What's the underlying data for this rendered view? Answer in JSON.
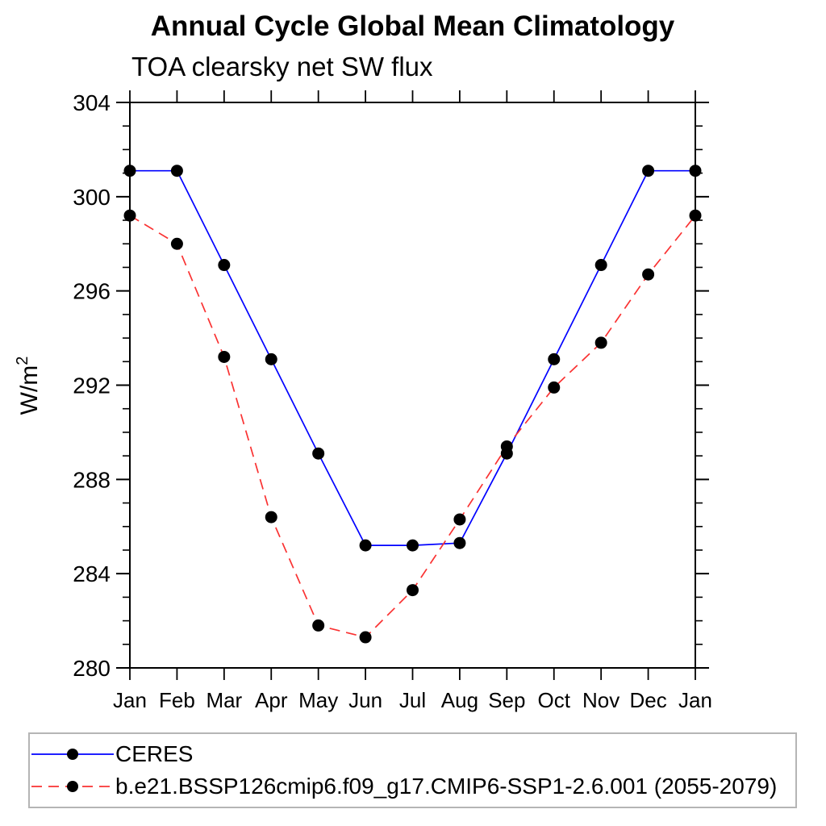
{
  "chart": {
    "title": "Annual Cycle Global Mean Climatology",
    "subtitle": "TOA clearsky net SW flux",
    "ylabel": {
      "base": "W/m",
      "exp": "2"
    }
  },
  "chart_data": {
    "type": "line",
    "categories": [
      "Jan",
      "Feb",
      "Mar",
      "Apr",
      "May",
      "Jun",
      "Jul",
      "Aug",
      "Sep",
      "Oct",
      "Nov",
      "Dec",
      "Jan"
    ],
    "series": [
      {
        "name": "CERES",
        "color": "#0000ff",
        "line_style": "solid",
        "marker": "filled-circle",
        "values": [
          301.1,
          301.1,
          297.1,
          293.1,
          289.1,
          285.2,
          285.2,
          285.3,
          289.1,
          293.1,
          297.1,
          301.1,
          301.1
        ]
      },
      {
        "name": "b.e21.BSSP126cmip6.f09_g17.CMIP6-SSP1-2.6.001 (2055-2079)",
        "color": "#fa3232",
        "line_style": "dashed",
        "marker": "filled-circle",
        "values": [
          299.2,
          298.0,
          293.2,
          286.4,
          281.8,
          281.3,
          283.3,
          286.3,
          289.4,
          291.9,
          293.8,
          296.7,
          299.2
        ]
      }
    ],
    "ylim": [
      280,
      304
    ],
    "ytick_major_step": 4,
    "ytick_minor_step": 1,
    "grid": false,
    "legend_position": "bottom-left",
    "marker_color": "#000000",
    "axis_color": "#000000"
  }
}
